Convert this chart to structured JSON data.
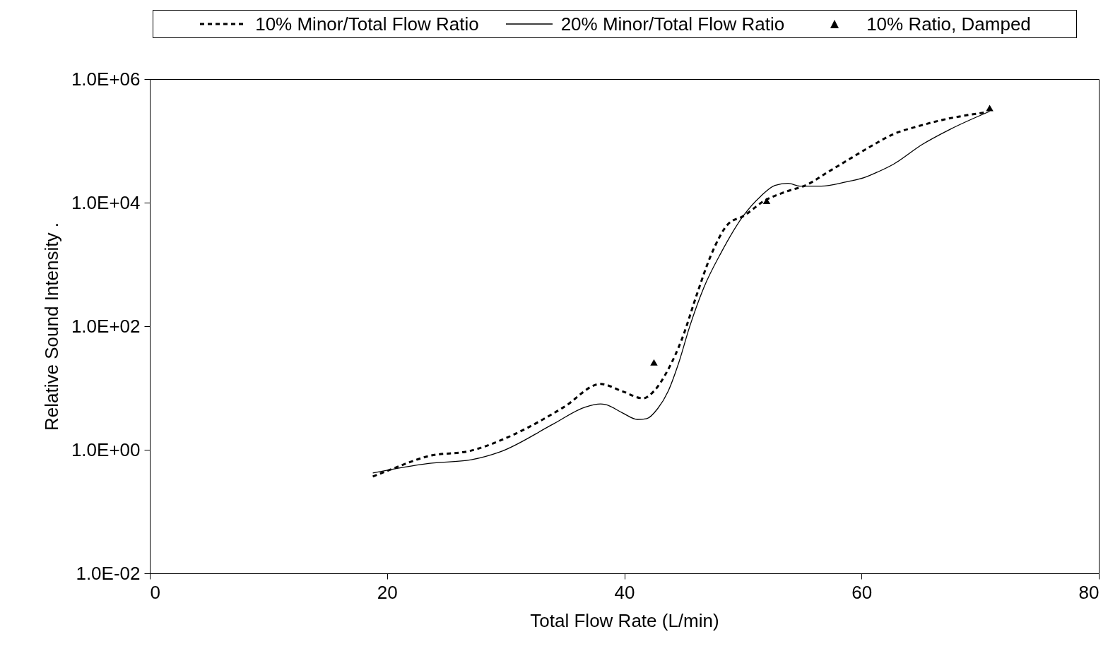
{
  "chart_data": {
    "type": "line",
    "xlabel": "Total Flow Rate (L/min)",
    "ylabel": "Relative Sound Intensity .",
    "log": "y",
    "grid": false,
    "legend": "top",
    "xlim": [
      0,
      80
    ],
    "xticks": [
      0,
      20,
      40,
      60,
      80
    ],
    "ylim": [
      0.01,
      1000000
    ],
    "yticks": [
      {
        "value": 0.01,
        "label": "1.0E-02"
      },
      {
        "value": 1,
        "label": "1.0E+00"
      },
      {
        "value": 100,
        "label": "1.0E+02"
      },
      {
        "value": 10000,
        "label": "1.0E+04"
      },
      {
        "value": 1000000,
        "label": "1.0E+06"
      }
    ],
    "series": [
      {
        "name": "10% Minor/Total Flow Ratio",
        "type": "line",
        "line_style": "dashed",
        "color": "#000000",
        "x": [
          18.8,
          20.2,
          23.5,
          27.1,
          29.5,
          31.9,
          34.9,
          38.0,
          39.8,
          41.6,
          42.5,
          43.7,
          44.9,
          46.1,
          47.3,
          48.8,
          50.0,
          51.8,
          53.6,
          55.4,
          57.2,
          59.0,
          60.8,
          62.7,
          64.8,
          66.9,
          70.5
        ],
        "values": [
          0.37,
          0.47,
          0.79,
          0.97,
          1.4,
          2.3,
          4.9,
          11.6,
          8.9,
          6.8,
          8.9,
          20,
          65,
          320,
          1400,
          4600,
          6000,
          10700,
          15000,
          19500,
          31600,
          51000,
          82000,
          129000,
          173000,
          220000,
          290000
        ]
      },
      {
        "name": "20% Minor/Total Flow Ratio",
        "type": "line",
        "line_style": "solid",
        "color": "#000000",
        "x": [
          18.8,
          23.5,
          27.1,
          29.5,
          34.0,
          36.7,
          38.0,
          38.4,
          39.8,
          41.1,
          41.9,
          42.8,
          43.7,
          44.6,
          45.5,
          46.7,
          48.2,
          50.0,
          51.5,
          52.7,
          53.8,
          54.8,
          56.6,
          58.7,
          60.2,
          61.4,
          62.7,
          65.1,
          67.5,
          70.8
        ],
        "values": [
          0.42,
          0.6,
          0.69,
          0.92,
          2.6,
          4.9,
          5.5,
          5.4,
          4.0,
          3.1,
          3.2,
          4.6,
          8.9,
          26,
          97,
          420,
          1600,
          6000,
          12700,
          19000,
          20500,
          18500,
          18500,
          21700,
          25300,
          31600,
          42000,
          87000,
          155000,
          300000
        ]
      },
      {
        "name": "10% Ratio, Damped",
        "type": "scatter",
        "marker": "triangle",
        "color": "#000000",
        "x": [
          42.5,
          52.0,
          70.8
        ],
        "values": [
          26,
          10700,
          340000
        ]
      }
    ]
  }
}
